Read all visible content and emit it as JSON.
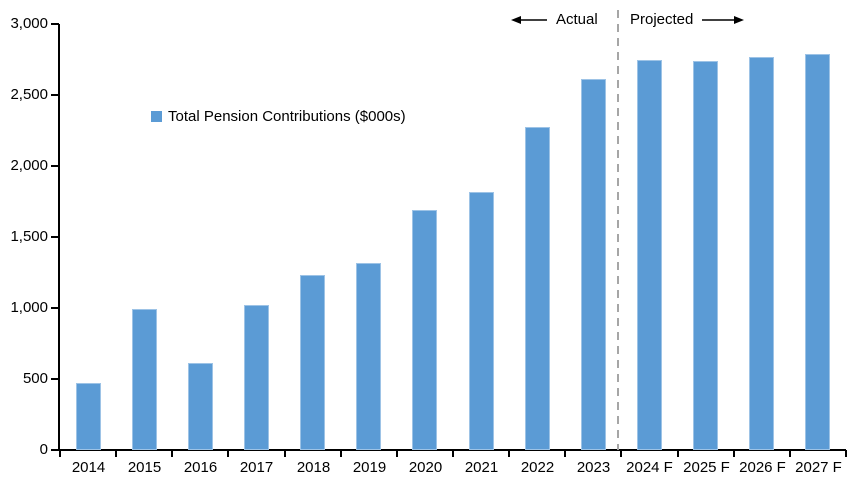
{
  "chart_data": {
    "type": "bar",
    "title": "",
    "legend": "Total Pension Contributions ($000s)",
    "categories": [
      "2014",
      "2015",
      "2016",
      "2017",
      "2018",
      "2019",
      "2020",
      "2021",
      "2022",
      "2023",
      "2024 F",
      "2025 F",
      "2026 F",
      "2027 F"
    ],
    "values": [
      470,
      990,
      610,
      1020,
      1230,
      1320,
      1690,
      1820,
      2275,
      2610,
      2750,
      2740,
      2770,
      2790
    ],
    "xlabel": "",
    "ylabel": "",
    "ylim": [
      0,
      3000
    ],
    "y_ticks": [
      0,
      500,
      1000,
      1500,
      2000,
      2500,
      3000
    ],
    "y_tick_labels": [
      "0",
      "500",
      "1,000",
      "1,500",
      "2,000",
      "2,500",
      "3,000"
    ],
    "grid": false,
    "legend_position": "inside-upper-left",
    "bar_color": "#5B9BD5",
    "bar_border_color": "#9DC3E6",
    "axis_color": "#000000",
    "divider_color": "#A6A6A6",
    "annotations": {
      "actual_label": "Actual",
      "projected_label": "Projected",
      "divider_after_category": "2023"
    }
  }
}
